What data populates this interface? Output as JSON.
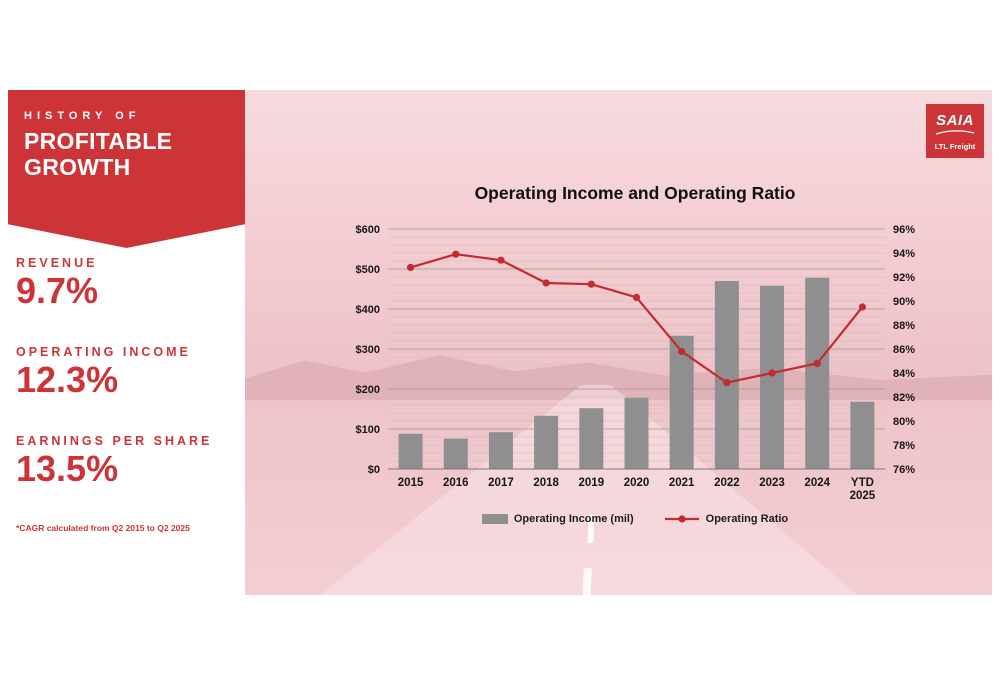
{
  "slide": {
    "banner": {
      "eyebrow": "HISTORY OF",
      "title_line1": "PROFITABLE",
      "title_line2": "GROWTH"
    },
    "stats": [
      {
        "label": "REVENUE",
        "value": "9.7%"
      },
      {
        "label": "OPERATING INCOME",
        "value": "12.3%"
      },
      {
        "label": "EARNINGS PER SHARE",
        "value": "13.5%"
      }
    ],
    "footnote": "*CAGR calculated from Q2 2015 to Q2 2025",
    "logo": {
      "brand": "SAIA",
      "tagline": "LTL Freight"
    }
  },
  "colors": {
    "accent_red": "#cd3438",
    "bar_gray": "#8f8f8f",
    "line_red": "#c42a30"
  },
  "chart_data": {
    "type": "combo",
    "title": "Operating Income and Operating Ratio",
    "categories": [
      "2015",
      "2016",
      "2017",
      "2018",
      "2019",
      "2020",
      "2021",
      "2022",
      "2023",
      "2024",
      "YTD 2025"
    ],
    "series": [
      {
        "name": "Operating Income (mil)",
        "type": "bar",
        "axis": "left",
        "color": "#8f8f8f",
        "values": [
          88,
          76,
          92,
          133,
          152,
          178,
          333,
          470,
          458,
          478,
          168
        ]
      },
      {
        "name": "Operating Ratio",
        "type": "line",
        "axis": "right",
        "color": "#c42a30",
        "values": [
          92.8,
          93.9,
          93.4,
          91.5,
          91.4,
          90.3,
          85.8,
          83.2,
          84,
          84.8,
          89.5
        ]
      }
    ],
    "left_axis": {
      "min": 0,
      "max": 600,
      "tick_step": 100,
      "minor_step": 20,
      "ticks": [
        {
          "v": 0,
          "label": "$0"
        },
        {
          "v": 100,
          "label": "$100"
        },
        {
          "v": 200,
          "label": "$200"
        },
        {
          "v": 300,
          "label": "$300"
        },
        {
          "v": 400,
          "label": "$400"
        },
        {
          "v": 500,
          "label": "$500"
        },
        {
          "v": 600,
          "label": "$600"
        }
      ]
    },
    "right_axis": {
      "min": 76,
      "max": 96,
      "tick_step": 2,
      "ticks": [
        {
          "v": 76,
          "label": "76%"
        },
        {
          "v": 78,
          "label": "78%"
        },
        {
          "v": 80,
          "label": "80%"
        },
        {
          "v": 82,
          "label": "82%"
        },
        {
          "v": 84,
          "label": "84%"
        },
        {
          "v": 86,
          "label": "86%"
        },
        {
          "v": 88,
          "label": "88%"
        },
        {
          "v": 90,
          "label": "90%"
        },
        {
          "v": 92,
          "label": "92%"
        },
        {
          "v": 94,
          "label": "94%"
        },
        {
          "v": 96,
          "label": "96%"
        }
      ]
    },
    "grid": true,
    "legend_position": "bottom"
  }
}
